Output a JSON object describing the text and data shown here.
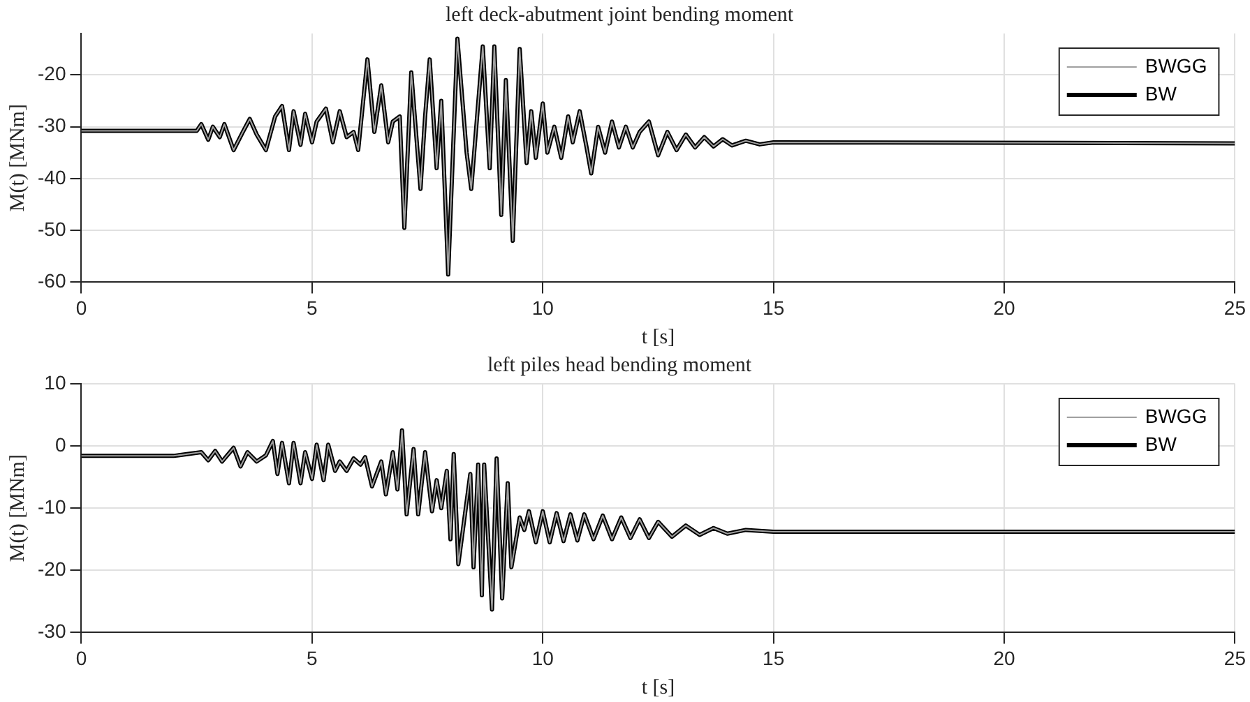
{
  "chart_data": [
    {
      "type": "line",
      "title": "left deck-abutment joint bending moment",
      "xlabel": "t [s]",
      "ylabel": "M(t) [MNm]",
      "xlim": [
        0,
        25
      ],
      "ylim": [
        -60,
        -12
      ],
      "xticks": [
        0,
        5,
        10,
        15,
        20,
        25
      ],
      "yticks": [
        -60,
        -50,
        -40,
        -30,
        -20
      ],
      "grid": true,
      "legend": "top right",
      "line_style": "solid",
      "x": [
        0,
        1,
        2,
        2.5,
        2.6,
        2.75,
        2.85,
        3.0,
        3.1,
        3.3,
        3.5,
        3.65,
        3.8,
        4.0,
        4.2,
        4.35,
        4.5,
        4.6,
        4.75,
        4.85,
        5.0,
        5.1,
        5.3,
        5.45,
        5.6,
        5.75,
        5.9,
        6.0,
        6.2,
        6.35,
        6.5,
        6.65,
        6.75,
        6.9,
        7.0,
        7.15,
        7.35,
        7.45,
        7.55,
        7.7,
        7.8,
        7.95,
        8.15,
        8.35,
        8.45,
        8.55,
        8.7,
        8.85,
        8.95,
        9.1,
        9.2,
        9.35,
        9.5,
        9.65,
        9.75,
        9.85,
        10.0,
        10.1,
        10.25,
        10.4,
        10.55,
        10.65,
        10.8,
        10.95,
        11.05,
        11.2,
        11.35,
        11.5,
        11.65,
        11.8,
        11.95,
        12.1,
        12.3,
        12.5,
        12.7,
        12.9,
        13.1,
        13.3,
        13.5,
        13.7,
        13.9,
        14.1,
        14.4,
        14.7,
        15,
        25
      ],
      "series": [
        {
          "name": "BWGG",
          "color": "#a0a0a0",
          "values": [
            -30.8,
            -30.8,
            -30.8,
            -30.8,
            -29.5,
            -32.5,
            -30,
            -32,
            -29.5,
            -34.5,
            -31,
            -28.5,
            -31.5,
            -34.5,
            -28,
            -26,
            -34.5,
            -27,
            -33.5,
            -27.5,
            -33,
            -29,
            -26.5,
            -33,
            -27,
            -32,
            -31,
            -34.5,
            -17,
            -31,
            -22,
            -33,
            -29,
            -28,
            -49.5,
            -19.5,
            -42,
            -28,
            -17,
            -38,
            -25,
            -58.5,
            -13,
            -35,
            -42,
            -31,
            -14.5,
            -38,
            -14.5,
            -47,
            -21,
            -52,
            -15,
            -37,
            -27,
            -36,
            -25.5,
            -35,
            -30,
            -36,
            -28,
            -33,
            -27,
            -34,
            -39,
            -30,
            -35,
            -29,
            -34,
            -30,
            -34,
            -31,
            -29,
            -35.5,
            -31,
            -34.5,
            -31.5,
            -34,
            -32,
            -33.8,
            -32.4,
            -33.6,
            -32.7,
            -33.4,
            -33,
            -33.2
          ]
        },
        {
          "name": "BW",
          "color": "#000000",
          "values": [
            -30.8,
            -30.8,
            -30.8,
            -30.8,
            -29.5,
            -32.5,
            -30,
            -32,
            -29.5,
            -34.5,
            -31,
            -28.5,
            -31.5,
            -34.5,
            -28,
            -26,
            -34.5,
            -27,
            -33.5,
            -27.5,
            -33,
            -29,
            -26.5,
            -33,
            -27,
            -32,
            -31,
            -34.5,
            -17,
            -31,
            -22,
            -33,
            -29,
            -28,
            -49.5,
            -19.5,
            -42,
            -28,
            -17,
            -38,
            -25,
            -58.5,
            -13,
            -35,
            -42,
            -31,
            -14.5,
            -38,
            -14.5,
            -47,
            -21,
            -52,
            -15,
            -37,
            -27,
            -36,
            -25.5,
            -35,
            -30,
            -36,
            -28,
            -33,
            -27,
            -34,
            -39,
            -30,
            -35,
            -29,
            -34,
            -30,
            -34,
            -31,
            -29,
            -35.5,
            -31,
            -34.5,
            -31.5,
            -34,
            -32,
            -33.8,
            -32.4,
            -33.6,
            -32.7,
            -33.4,
            -33,
            -33.2
          ]
        }
      ]
    },
    {
      "type": "line",
      "title": "left piles head bending moment",
      "xlabel": "t [s]",
      "ylabel": "M(t) [MNm]",
      "xlim": [
        0,
        25
      ],
      "ylim": [
        -30,
        10
      ],
      "xticks": [
        0,
        5,
        10,
        15,
        20,
        25
      ],
      "yticks": [
        -30,
        -20,
        -10,
        0,
        10
      ],
      "grid": true,
      "legend": "top right",
      "line_style": "solid",
      "x": [
        0,
        1,
        2,
        2.6,
        2.75,
        2.9,
        3.05,
        3.3,
        3.45,
        3.6,
        3.8,
        4.0,
        4.15,
        4.25,
        4.35,
        4.5,
        4.6,
        4.75,
        4.85,
        5.0,
        5.1,
        5.25,
        5.35,
        5.5,
        5.6,
        5.75,
        5.9,
        6.05,
        6.15,
        6.3,
        6.5,
        6.6,
        6.75,
        6.85,
        6.95,
        7.05,
        7.2,
        7.3,
        7.45,
        7.6,
        7.7,
        7.8,
        7.92,
        8.0,
        8.07,
        8.17,
        8.43,
        8.5,
        8.6,
        8.68,
        8.73,
        8.9,
        9.0,
        9.12,
        9.24,
        9.32,
        9.5,
        9.6,
        9.7,
        9.85,
        10.0,
        10.15,
        10.3,
        10.45,
        10.6,
        10.75,
        10.9,
        11.1,
        11.3,
        11.5,
        11.7,
        11.9,
        12.1,
        12.3,
        12.5,
        12.8,
        13.1,
        13.4,
        13.7,
        14.0,
        14.4,
        15,
        25
      ],
      "series": [
        {
          "name": "BWGG",
          "color": "#a0a0a0",
          "values": [
            -1.6,
            -1.6,
            -1.6,
            -1,
            -2.3,
            -0.8,
            -2.5,
            -0.3,
            -3.3,
            -1,
            -2.5,
            -1.5,
            0.8,
            -4.5,
            0.5,
            -6,
            0.5,
            -6,
            -1,
            -5.3,
            0.2,
            -5.5,
            0.2,
            -4,
            -2.5,
            -4,
            -2,
            -3,
            -1.8,
            -6.5,
            -2.5,
            -7.8,
            -1,
            -7,
            2.5,
            -11,
            -0.5,
            -11,
            -1,
            -10.5,
            -5.5,
            -10,
            -4,
            -15,
            -1.3,
            -19,
            -4.5,
            -19.5,
            -3,
            -24,
            -3,
            -26.3,
            -2,
            -24.5,
            -6,
            -19.5,
            -11.5,
            -13.5,
            -10.5,
            -15.5,
            -10.5,
            -15.5,
            -10.8,
            -15.3,
            -11,
            -15.2,
            -11,
            -15,
            -11.2,
            -15,
            -11.5,
            -14.8,
            -11.8,
            -14.8,
            -12.2,
            -14.6,
            -12.8,
            -14.3,
            -13.2,
            -14.1,
            -13.5,
            -13.8,
            -13.8
          ]
        },
        {
          "name": "BW",
          "color": "#000000",
          "values": [
            -1.6,
            -1.6,
            -1.6,
            -1,
            -2.3,
            -0.8,
            -2.5,
            -0.3,
            -3.3,
            -1,
            -2.5,
            -1.5,
            0.8,
            -4.5,
            0.5,
            -6,
            0.5,
            -6,
            -1,
            -5.3,
            0.2,
            -5.5,
            0.2,
            -4,
            -2.5,
            -4,
            -2,
            -3,
            -1.8,
            -6.5,
            -2.5,
            -7.8,
            -1,
            -7,
            2.5,
            -11,
            -0.5,
            -11,
            -1,
            -10.5,
            -5.5,
            -10,
            -4,
            -15,
            -1.3,
            -19,
            -4.5,
            -19.5,
            -3,
            -24,
            -3,
            -26.3,
            -2,
            -24.5,
            -6,
            -19.5,
            -11.5,
            -13.5,
            -10.5,
            -15.5,
            -10.5,
            -15.5,
            -10.8,
            -15.3,
            -11,
            -15.2,
            -11,
            -15,
            -11.2,
            -15,
            -11.5,
            -14.8,
            -11.8,
            -14.8,
            -12.2,
            -14.6,
            -12.8,
            -14.3,
            -13.2,
            -14.1,
            -13.5,
            -13.8,
            -13.8
          ]
        }
      ]
    }
  ]
}
